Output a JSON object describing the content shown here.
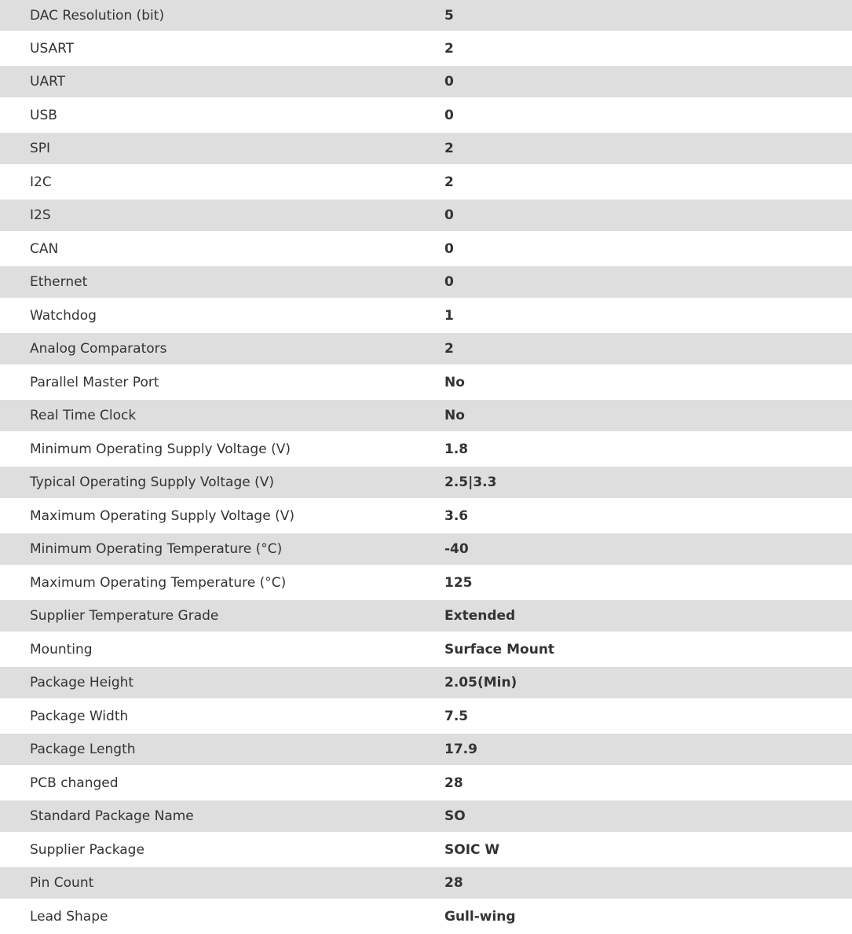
{
  "specs": [
    {
      "label": "DAC Resolution (bit)",
      "value": "5"
    },
    {
      "label": "USART",
      "value": "2"
    },
    {
      "label": "UART",
      "value": "0"
    },
    {
      "label": "USB",
      "value": "0"
    },
    {
      "label": "SPI",
      "value": "2"
    },
    {
      "label": "I2C",
      "value": "2"
    },
    {
      "label": "I2S",
      "value": "0"
    },
    {
      "label": "CAN",
      "value": "0"
    },
    {
      "label": "Ethernet",
      "value": "0"
    },
    {
      "label": "Watchdog",
      "value": "1"
    },
    {
      "label": "Analog Comparators",
      "value": "2"
    },
    {
      "label": "Parallel Master Port",
      "value": "No"
    },
    {
      "label": "Real Time Clock",
      "value": "No"
    },
    {
      "label": "Minimum Operating Supply Voltage (V)",
      "value": "1.8"
    },
    {
      "label": "Typical Operating Supply Voltage (V)",
      "value": "2.5|3.3"
    },
    {
      "label": "Maximum Operating Supply Voltage (V)",
      "value": "3.6"
    },
    {
      "label": "Minimum Operating Temperature (°C)",
      "value": "-40"
    },
    {
      "label": "Maximum Operating Temperature (°C)",
      "value": "125"
    },
    {
      "label": "Supplier Temperature Grade",
      "value": "Extended"
    },
    {
      "label": "Mounting",
      "value": "Surface Mount"
    },
    {
      "label": "Package Height",
      "value": "2.05(Min)"
    },
    {
      "label": "Package Width",
      "value": "7.5"
    },
    {
      "label": "Package Length",
      "value": "17.9"
    },
    {
      "label": "PCB changed",
      "value": "28"
    },
    {
      "label": "Standard Package Name",
      "value": "SO"
    },
    {
      "label": "Supplier Package",
      "value": "SOIC W"
    },
    {
      "label": "Pin Count",
      "value": "28"
    },
    {
      "label": "Lead Shape",
      "value": "Gull-wing"
    }
  ]
}
